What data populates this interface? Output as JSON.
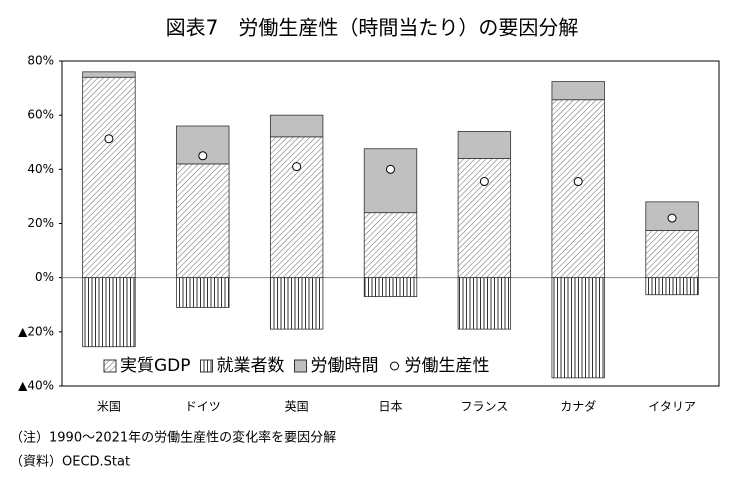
{
  "chart_data": {
    "type": "bar",
    "stacked": true,
    "title": "図表7　労働生産性（時間当たり）の要因分解",
    "categories": [
      "米国",
      "ドイツ",
      "英国",
      "日本",
      "フランス",
      "カナダ",
      "イタリア"
    ],
    "series": [
      {
        "name": "実質GDP",
        "type": "bar",
        "pattern": "diagonal",
        "color": "#555555",
        "values": [
          74,
          42,
          52,
          24,
          44,
          65.7,
          17.4
        ]
      },
      {
        "name": "就業者数",
        "type": "bar",
        "pattern": "vertical",
        "color": "#555555",
        "values": [
          -25.5,
          -11,
          -19,
          -7,
          -19,
          -37,
          -6.3
        ]
      },
      {
        "name": "労働時間",
        "type": "bar",
        "pattern": "solid",
        "color": "#c0c0c0",
        "values": [
          2,
          14,
          8,
          23.6,
          10,
          6.7,
          10.6
        ]
      },
      {
        "name": "労働生産性",
        "type": "scatter",
        "color": "#ffffff",
        "values": [
          51.3,
          45,
          41,
          40,
          35.5,
          35.5,
          22
        ]
      }
    ],
    "ylim": [
      -40,
      80
    ],
    "yticks": [
      {
        "value": -40,
        "label": "▲40%"
      },
      {
        "value": -20,
        "label": "▲20%"
      },
      {
        "value": 0,
        "label": "0%"
      },
      {
        "value": 20,
        "label": "20%"
      },
      {
        "value": 40,
        "label": "40%"
      },
      {
        "value": 60,
        "label": "60%"
      },
      {
        "value": 80,
        "label": "80%"
      }
    ],
    "grid": false,
    "legend": "bottom",
    "notes": [
      "（注）1990～2021年の労働生産性の変化率を要因分解",
      "（資料）OECD.Stat"
    ]
  }
}
